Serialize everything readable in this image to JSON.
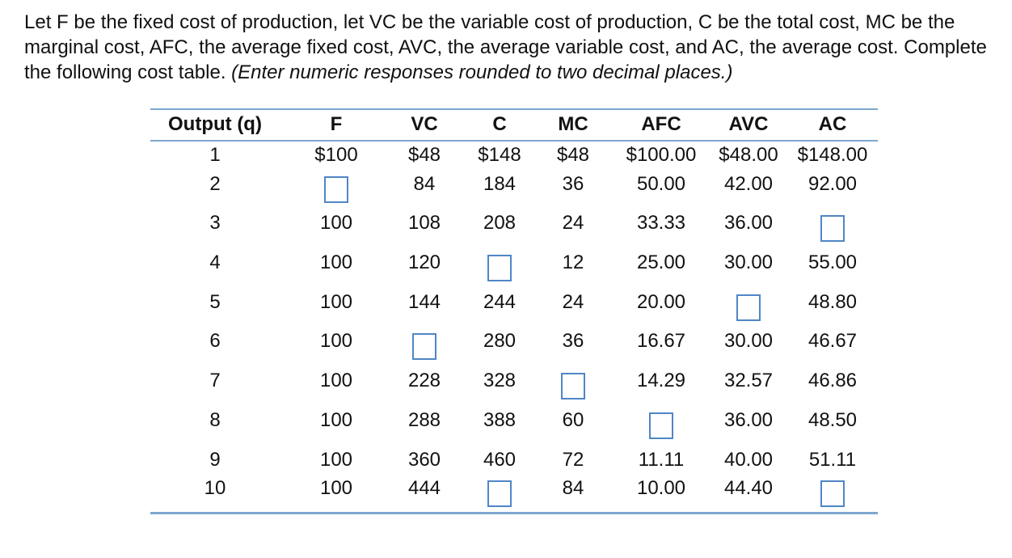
{
  "prompt": {
    "text": "Let F be the fixed cost of production, let VC be the variable cost of production, C be the total cost, MC be the marginal cost, AFC, the average fixed cost, AVC, the average variable cost, and AC, the average cost.  Complete the following cost table.",
    "instruction": "(Enter numeric responses rounded to two decimal places.)"
  },
  "table": {
    "headers": [
      "Output (q)",
      "F",
      "VC",
      "C",
      "MC",
      "AFC",
      "AVC",
      "AC"
    ],
    "rows": [
      [
        "1",
        "$100",
        "$48",
        "$148",
        "$48",
        "$100.00",
        "$48.00",
        "$148.00"
      ],
      [
        "2",
        null,
        "84",
        "184",
        "36",
        "50.00",
        "42.00",
        "92.00"
      ],
      [
        "3",
        "100",
        "108",
        "208",
        "24",
        "33.33",
        "36.00",
        null
      ],
      [
        "4",
        "100",
        "120",
        null,
        "12",
        "25.00",
        "30.00",
        "55.00"
      ],
      [
        "5",
        "100",
        "144",
        "244",
        "24",
        "20.00",
        null,
        "48.80"
      ],
      [
        "6",
        "100",
        null,
        "280",
        "36",
        "16.67",
        "30.00",
        "46.67"
      ],
      [
        "7",
        "100",
        "228",
        "328",
        null,
        "14.29",
        "32.57",
        "46.86"
      ],
      [
        "8",
        "100",
        "288",
        "388",
        "60",
        null,
        "36.00",
        "48.50"
      ],
      [
        "9",
        "100",
        "360",
        "460",
        "72",
        "11.11",
        "40.00",
        "51.11"
      ],
      [
        "10",
        "100",
        "444",
        null,
        "84",
        "10.00",
        "44.40",
        null
      ]
    ]
  }
}
